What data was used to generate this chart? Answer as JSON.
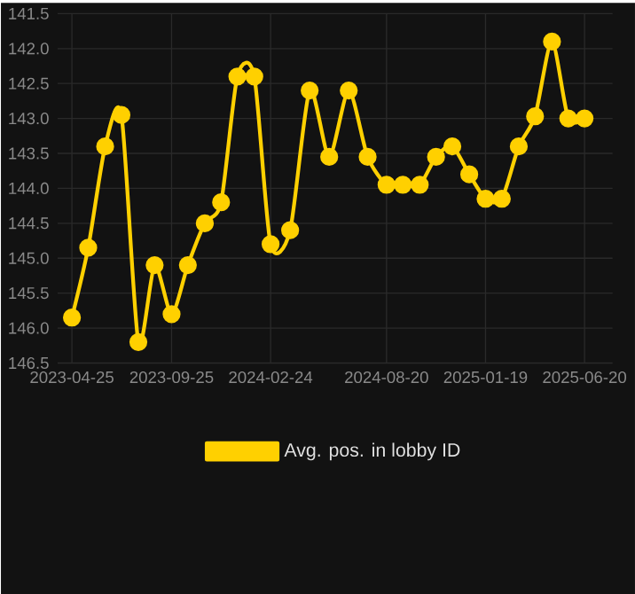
{
  "chart_data": {
    "type": "line",
    "x": [
      "2023-04-25",
      "2023-05-20",
      "2023-06-15",
      "2023-07-10",
      "2023-08-05",
      "2023-08-30",
      "2023-09-25",
      "2023-10-20",
      "2023-11-15",
      "2023-12-10",
      "2024-01-04",
      "2024-01-30",
      "2024-02-24",
      "2024-03-25",
      "2024-04-24",
      "2024-05-24",
      "2024-06-23",
      "2024-07-22",
      "2024-08-20",
      "2024-09-14",
      "2024-10-10",
      "2024-11-04",
      "2024-11-29",
      "2024-12-25",
      "2025-01-19",
      "2025-02-13",
      "2025-03-11",
      "2025-04-05",
      "2025-05-01",
      "2025-05-26",
      "2025-06-20"
    ],
    "series": [
      {
        "name": "Avg. pos. in lobby ID",
        "color": "#ffd000",
        "values": [
          145.85,
          144.85,
          143.4,
          142.95,
          146.2,
          145.1,
          145.8,
          145.1,
          144.5,
          144.2,
          142.4,
          142.4,
          144.8,
          144.6,
          142.6,
          143.55,
          142.6,
          143.55,
          143.95,
          143.95,
          143.95,
          143.55,
          143.4,
          143.8,
          144.15,
          144.15,
          143.4,
          142.97,
          141.9,
          143.0,
          143.0
        ]
      }
    ],
    "xlim": [
      "2023-04-03",
      "2025-08-02"
    ],
    "ylim": [
      146.5,
      141.5
    ],
    "xticks": [
      "2023-04-25",
      "2023-09-25",
      "2024-02-24",
      "2024-08-20",
      "2025-01-19",
      "2025-06-20"
    ],
    "yticks": [
      {
        "value": 141.5,
        "label": "141.5"
      },
      {
        "value": 142,
        "label": "142.0"
      },
      {
        "value": 142.5,
        "label": "142.5"
      },
      {
        "value": 143,
        "label": "143.0"
      },
      {
        "value": 143.5,
        "label": "143.5"
      },
      {
        "value": 144,
        "label": "144.0"
      },
      {
        "value": 144.5,
        "label": "144.5"
      },
      {
        "value": 145,
        "label": "145.0"
      },
      {
        "value": 145.5,
        "label": "145.5"
      },
      {
        "value": 146,
        "label": "146.0"
      },
      {
        "value": 146.5,
        "label": "146.5"
      }
    ],
    "grid": true,
    "legend": "bottom",
    "marker": "circle",
    "line_style": "solid"
  }
}
